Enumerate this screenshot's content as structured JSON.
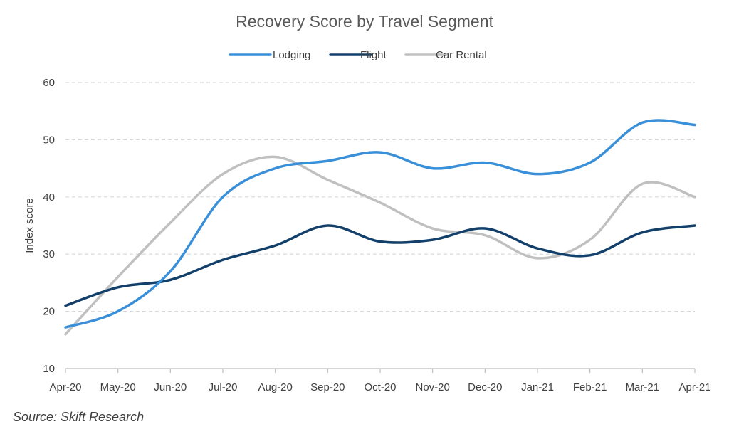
{
  "chart_data": {
    "type": "line",
    "title": "Recovery Score by Travel Segment",
    "ylabel": "Index score",
    "xlabel": "",
    "categories": [
      "Apr-20",
      "May-20",
      "Jun-20",
      "Jul-20",
      "Aug-20",
      "Sep-20",
      "Oct-20",
      "Nov-20",
      "Dec-20",
      "Jan-21",
      "Feb-21",
      "Mar-21",
      "Apr-21"
    ],
    "ylim": [
      10,
      60
    ],
    "yticks": [
      "10",
      "20",
      "30",
      "40",
      "50",
      "60"
    ],
    "grid": true,
    "legend_position": "top",
    "series": [
      {
        "name": "Lodging",
        "color": "#3a8fd9",
        "values": [
          17.2,
          20,
          27,
          40,
          45,
          46.3,
          47.8,
          45,
          46,
          44,
          46,
          53,
          52.6
        ]
      },
      {
        "name": "Flight",
        "color": "#12406b",
        "values": [
          21,
          24.2,
          25.5,
          29,
          31.5,
          35,
          32.2,
          32.5,
          34.5,
          31,
          29.8,
          33.8,
          35
        ]
      },
      {
        "name": "Car Rental",
        "color": "#c0c0c0",
        "values": [
          16,
          26,
          35.5,
          44,
          47,
          43,
          39,
          34.5,
          33.3,
          29.3,
          32.5,
          42.3,
          40
        ]
      }
    ]
  },
  "source": "Source: Skift Research"
}
